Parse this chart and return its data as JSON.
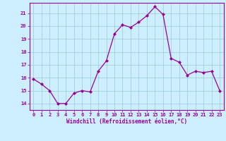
{
  "x": [
    0,
    1,
    2,
    3,
    4,
    5,
    6,
    7,
    8,
    9,
    10,
    11,
    12,
    13,
    14,
    15,
    16,
    17,
    18,
    19,
    20,
    21,
    22,
    23
  ],
  "y": [
    15.9,
    15.5,
    15.0,
    14.0,
    14.0,
    14.8,
    15.0,
    14.9,
    16.5,
    17.3,
    19.4,
    20.1,
    19.9,
    20.3,
    20.8,
    21.5,
    20.9,
    17.5,
    17.2,
    16.2,
    16.5,
    16.4,
    16.5,
    15.0
  ],
  "line_color": "#990099",
  "marker": "D",
  "marker_size": 2.0,
  "bg_color": "#cceeff",
  "grid_color": "#99cccc",
  "ylim": [
    13.5,
    21.8
  ],
  "xlim": [
    -0.5,
    23.5
  ],
  "yticks": [
    14,
    15,
    16,
    17,
    18,
    19,
    20,
    21
  ],
  "xticks": [
    0,
    1,
    2,
    3,
    4,
    5,
    6,
    7,
    8,
    9,
    10,
    11,
    12,
    13,
    14,
    15,
    16,
    17,
    18,
    19,
    20,
    21,
    22,
    23
  ],
  "xlabel": "Windchill (Refroidissement éolien,°C)",
  "xlabel_color": "#990099",
  "axis_color": "#990099",
  "tick_color": "#990099",
  "line_width": 0.9
}
